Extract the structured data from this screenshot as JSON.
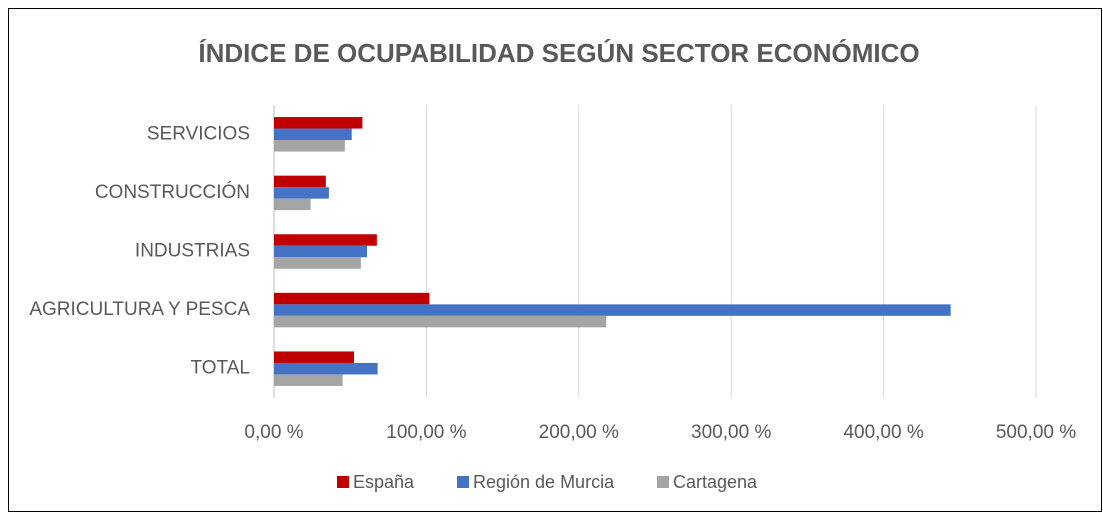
{
  "chart_data": {
    "type": "bar",
    "orientation": "horizontal",
    "title": "ÍNDICE DE OCUPABILIDAD SEGÚN SECTOR ECONÓMICO",
    "categories": [
      "TOTAL",
      "AGRICULTURA Y PESCA",
      "INDUSTRIAS",
      "CONSTRUCCIÓN",
      "SERVICIOS"
    ],
    "series": [
      {
        "name": "España",
        "color": "#c00000",
        "values": [
          52.5,
          102,
          67.5,
          34,
          58
        ]
      },
      {
        "name": "Región de Murcia",
        "color": "#4472c4",
        "values": [
          68,
          444,
          61,
          36,
          51
        ]
      },
      {
        "name": "Cartagena",
        "color": "#a5a5a5",
        "values": [
          45,
          218,
          57,
          24,
          46.5
        ]
      }
    ],
    "xlim": [
      0,
      500
    ],
    "xticks": [
      {
        "value": 0,
        "label": "0,00 %"
      },
      {
        "value": 100,
        "label": "100,00 %"
      },
      {
        "value": 200,
        "label": "200,00 %"
      },
      {
        "value": 300,
        "label": "300,00 %"
      },
      {
        "value": 400,
        "label": "400,00 %"
      },
      {
        "value": 500,
        "label": "500,00 %"
      }
    ],
    "grid": true,
    "legend": "bottom"
  }
}
